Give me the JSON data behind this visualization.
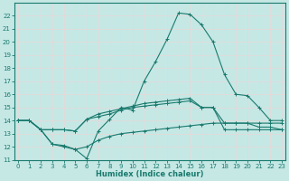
{
  "xlabel": "Humidex (Indice chaleur)",
  "bg_color": "#c5e8e5",
  "grid_color": "#daf0ee",
  "line_color": "#1a7a6e",
  "spine_color": "#1a7a6e",
  "x_data": [
    0,
    1,
    2,
    3,
    4,
    5,
    6,
    7,
    8,
    9,
    10,
    11,
    12,
    13,
    14,
    15,
    16,
    17,
    18,
    19,
    20,
    21,
    22,
    23
  ],
  "series": [
    [
      14.0,
      14.0,
      13.3,
      12.2,
      12.0,
      11.8,
      11.1,
      13.2,
      14.1,
      15.0,
      14.8,
      17.0,
      18.5,
      20.2,
      22.2,
      22.1,
      21.3,
      20.0,
      17.5,
      16.0,
      15.9,
      15.0,
      14.0,
      14.0
    ],
    [
      14.0,
      14.0,
      13.3,
      13.3,
      13.3,
      13.2,
      14.1,
      14.5,
      14.7,
      14.9,
      15.1,
      15.3,
      15.4,
      15.5,
      15.6,
      15.7,
      15.0,
      15.0,
      13.3,
      13.3,
      13.3,
      13.3,
      13.3,
      13.3
    ],
    [
      14.0,
      14.0,
      13.3,
      13.3,
      13.3,
      13.2,
      14.1,
      14.3,
      14.5,
      14.8,
      15.0,
      15.1,
      15.2,
      15.3,
      15.4,
      15.5,
      15.0,
      15.0,
      13.8,
      13.8,
      13.8,
      13.8,
      13.8,
      13.8
    ],
    [
      14.0,
      14.0,
      13.3,
      12.2,
      12.1,
      11.8,
      12.0,
      12.5,
      12.8,
      13.0,
      13.1,
      13.2,
      13.3,
      13.4,
      13.5,
      13.6,
      13.7,
      13.8,
      13.8,
      13.8,
      13.8,
      13.5,
      13.5,
      13.3
    ]
  ],
  "ylim": [
    11,
    23
  ],
  "xlim": [
    -0.3,
    23.3
  ],
  "yticks": [
    11,
    12,
    13,
    14,
    15,
    16,
    17,
    18,
    19,
    20,
    21,
    22
  ],
  "xticks": [
    0,
    1,
    2,
    3,
    4,
    5,
    6,
    7,
    8,
    9,
    10,
    11,
    12,
    13,
    14,
    15,
    16,
    17,
    18,
    19,
    20,
    21,
    22,
    23
  ],
  "tick_fontsize": 5.0,
  "xlabel_fontsize": 6.0
}
